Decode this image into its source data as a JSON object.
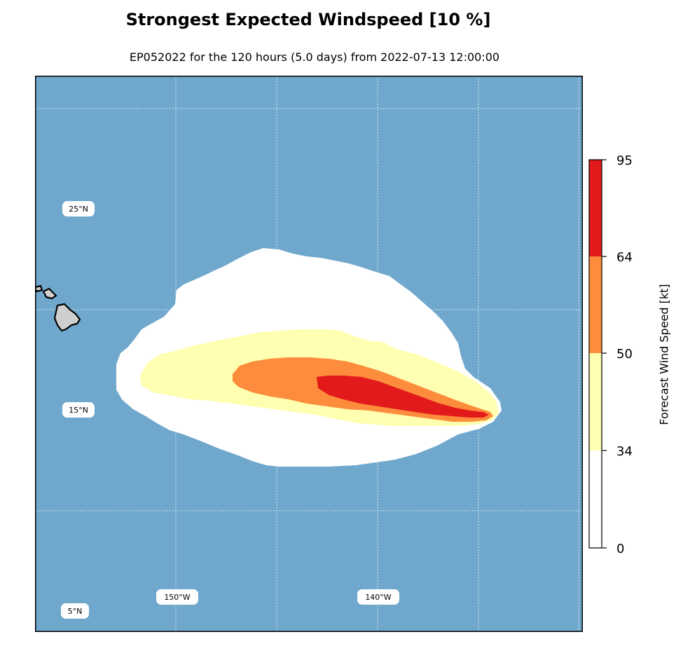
{
  "title": "Strongest Expected Windspeed [10 %]",
  "subtitle": "EP052022 for the 120 hours (5.0 days) from 2022-07-13 12:00:00",
  "map": {
    "ocean_color": "#6fa8cc",
    "land_color": "#cfcfcf",
    "grid_color": "#d9e4ee",
    "lat_labels": [
      "25°N",
      "15°N",
      "5°N"
    ],
    "lon_labels": [
      "150°W",
      "140°W"
    ]
  },
  "colorbar": {
    "label": "Forecast Wind Speed [kt]",
    "ticks": [
      "95",
      "64",
      "50",
      "34",
      "0"
    ],
    "levels": [
      {
        "min": 0,
        "max": 34,
        "color": "#ffffff"
      },
      {
        "min": 34,
        "max": 50,
        "color": "#ffffb2"
      },
      {
        "min": 50,
        "max": 64,
        "color": "#fd8d3c"
      },
      {
        "min": 64,
        "max": 95,
        "color": "#e31a1c"
      }
    ]
  }
}
